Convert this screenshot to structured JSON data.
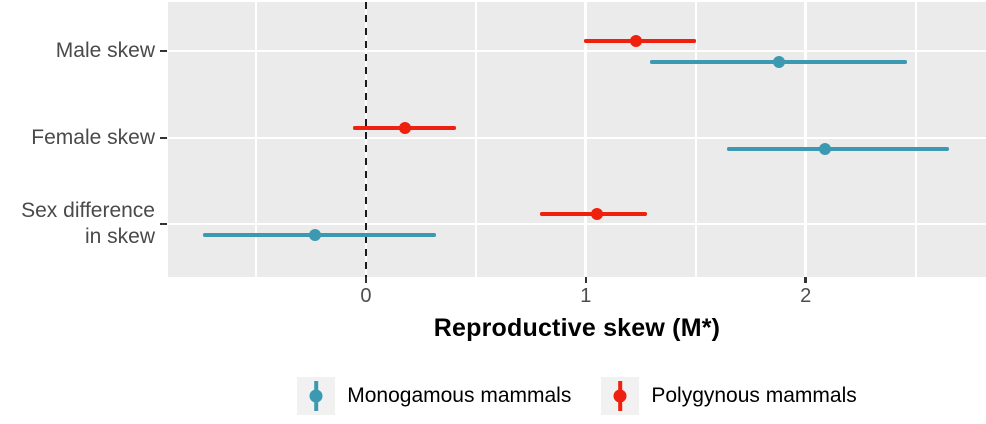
{
  "chart_data": {
    "type": "pointrange",
    "title": "",
    "xlabel": "Reproductive skew (M*)",
    "categories": [
      "Male skew",
      "Female skew",
      "Sex difference\nin skew"
    ],
    "x_tick_labels": [
      "0",
      "1",
      "2"
    ],
    "x_ticks": [
      0,
      1,
      2
    ],
    "xlim": [
      -0.9,
      2.82
    ],
    "grid": true,
    "reference_line_x": 0,
    "series": [
      {
        "name": "Polygynous mammals",
        "color": "#EF200D",
        "values": [
          {
            "category": "Male skew",
            "estimate": 1.23,
            "lower": 0.99,
            "upper": 1.5
          },
          {
            "category": "Female skew",
            "estimate": 0.18,
            "lower": -0.06,
            "upper": 0.41
          },
          {
            "category": "Sex difference in skew",
            "estimate": 1.05,
            "lower": 0.79,
            "upper": 1.28
          }
        ]
      },
      {
        "name": "Monogamous mammals",
        "color": "#3B9AB2",
        "values": [
          {
            "category": "Male skew",
            "estimate": 1.88,
            "lower": 1.29,
            "upper": 2.46
          },
          {
            "category": "Female skew",
            "estimate": 2.09,
            "lower": 1.64,
            "upper": 2.65
          },
          {
            "category": "Sex difference in skew",
            "estimate": -0.23,
            "lower": -0.74,
            "upper": 0.32
          }
        ]
      }
    ],
    "legend": {
      "position": "bottom",
      "entries": [
        {
          "label": "Monogamous mammals",
          "color": "#3B9AB2"
        },
        {
          "label": "Polygynous mammals",
          "color": "#EF200D"
        }
      ]
    },
    "colors": {
      "panel_background": "#EBEBEB",
      "gridline": "#FFFFFF",
      "axis_text": "#4D4D4D",
      "axis_title": "#000000",
      "reference_line": "#1A1A1A",
      "legend_key_background": "#F1F1F1"
    }
  }
}
